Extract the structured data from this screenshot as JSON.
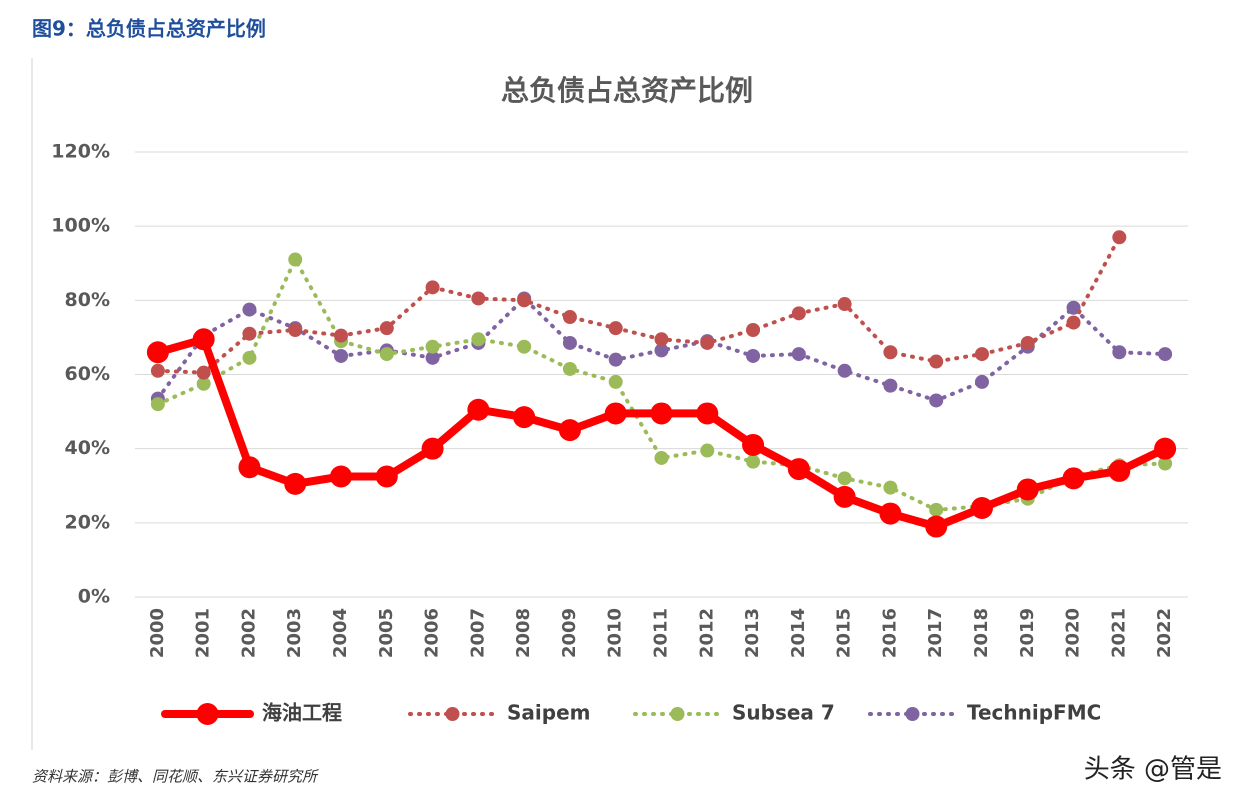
{
  "header": "图9：总负债占总资产比例",
  "source": "资料来源：彭博、同花顺、东兴证券研究所",
  "watermark": "头条 @管是",
  "chart_data": {
    "type": "line",
    "title": "总负债占总资产比例",
    "categories": [
      "2000",
      "2001",
      "2002",
      "2003",
      "2004",
      "2005",
      "2006",
      "2007",
      "2008",
      "2009",
      "2010",
      "2011",
      "2012",
      "2013",
      "2014",
      "2015",
      "2016",
      "2017",
      "2018",
      "2019",
      "2020",
      "2021",
      "2022"
    ],
    "ylim": [
      0,
      120
    ],
    "yticks": [
      {
        "value": 0,
        "label": "0%"
      },
      {
        "value": 20,
        "label": "20%"
      },
      {
        "value": 40,
        "label": "40%"
      },
      {
        "value": 60,
        "label": "60%"
      },
      {
        "value": 80,
        "label": "80%"
      },
      {
        "value": 100,
        "label": "100%"
      },
      {
        "value": 120,
        "label": "120%"
      }
    ],
    "grid": true,
    "legend": "bottom",
    "series": [
      {
        "name": "海油工程",
        "color": "#ff0000",
        "line_style": "solid",
        "values": [
          66,
          69.5,
          35,
          30.5,
          32.5,
          32.5,
          40,
          50.5,
          48.5,
          45,
          49.5,
          49.5,
          49.5,
          41,
          34.5,
          27,
          22.5,
          19,
          24,
          29,
          32,
          34,
          40
        ]
      },
      {
        "name": "Saipem",
        "color": "#c0504d",
        "line_style": "dotted",
        "values": [
          61,
          60.5,
          71,
          72,
          70.5,
          72.5,
          83.5,
          80.5,
          80,
          75.5,
          72.5,
          69.5,
          68.5,
          72,
          76.5,
          79,
          66,
          63.5,
          65.5,
          68.5,
          74,
          97,
          null
        ]
      },
      {
        "name": "Subsea 7",
        "color": "#9bbb59",
        "line_style": "dotted",
        "values": [
          52,
          57.5,
          64.5,
          91,
          69,
          65.5,
          67.5,
          69.5,
          67.5,
          61.5,
          58,
          37.5,
          39.5,
          36.5,
          35.5,
          32,
          29.5,
          23.5,
          24.5,
          26.5,
          32.5,
          35.5,
          36
        ]
      },
      {
        "name": "TechnipFMC",
        "color": "#8064a2",
        "line_style": "dotted",
        "values": [
          53.5,
          70.5,
          77.5,
          72.5,
          65,
          66.5,
          64.5,
          68.5,
          80.5,
          68.5,
          64,
          66.5,
          69,
          65,
          65.5,
          61,
          57,
          53,
          58,
          67.5,
          78,
          66,
          65.5
        ]
      }
    ]
  }
}
